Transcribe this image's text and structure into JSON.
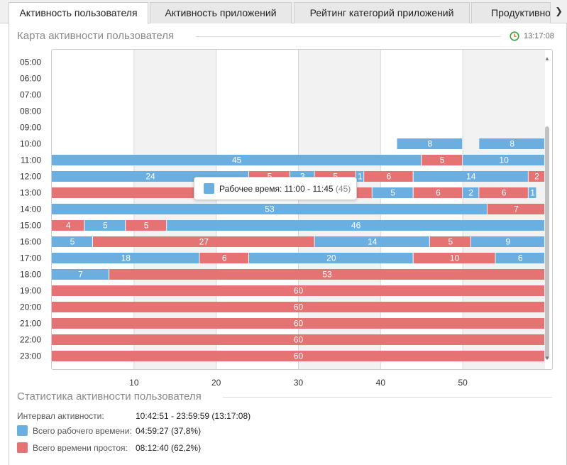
{
  "tabs": [
    {
      "label": "Активность пользователя",
      "active": true
    },
    {
      "label": "Активность приложений",
      "active": false
    },
    {
      "label": "Рейтинг категорий приложений",
      "active": false
    },
    {
      "label": "Продуктивнос",
      "active": false
    }
  ],
  "map_section": {
    "title": "Карта активности пользователя",
    "clock_icon": "clock-icon",
    "clock_time": "13:17:08"
  },
  "colors": {
    "work": "#6aafe0",
    "idle": "#e57373"
  },
  "chart_data": {
    "type": "bar",
    "orientation": "horizontal-stacked-timeline",
    "x_unit": "minutes",
    "xlim": [
      0,
      60
    ],
    "x_ticks": [
      10,
      20,
      30,
      40,
      50
    ],
    "hours": [
      "05:00",
      "06:00",
      "07:00",
      "08:00",
      "09:00",
      "10:00",
      "11:00",
      "12:00",
      "13:00",
      "14:00",
      "15:00",
      "16:00",
      "17:00",
      "18:00",
      "19:00",
      "20:00",
      "21:00",
      "22:00",
      "23:00"
    ],
    "rows": [
      {
        "hour": "05:00",
        "segments": []
      },
      {
        "hour": "06:00",
        "segments": []
      },
      {
        "hour": "07:00",
        "segments": []
      },
      {
        "hour": "08:00",
        "segments": []
      },
      {
        "hour": "09:00",
        "segments": []
      },
      {
        "hour": "10:00",
        "segments": [
          {
            "s": 42,
            "d": 8,
            "t": "work"
          },
          {
            "s": 52,
            "d": 8,
            "t": "work"
          }
        ]
      },
      {
        "hour": "11:00",
        "segments": [
          {
            "s": 0,
            "d": 45,
            "t": "work"
          },
          {
            "s": 45,
            "d": 5,
            "t": "idle"
          },
          {
            "s": 50,
            "d": 10,
            "t": "work"
          }
        ]
      },
      {
        "hour": "12:00",
        "segments": [
          {
            "s": 0,
            "d": 24,
            "t": "work"
          },
          {
            "s": 24,
            "d": 5,
            "t": "idle"
          },
          {
            "s": 29,
            "d": 3,
            "t": "work"
          },
          {
            "s": 32,
            "d": 5,
            "t": "idle"
          },
          {
            "s": 37,
            "d": 1,
            "t": "work"
          },
          {
            "s": 38,
            "d": 6,
            "t": "idle"
          },
          {
            "s": 44,
            "d": 14,
            "t": "work"
          },
          {
            "s": 58,
            "d": 2,
            "t": "idle"
          }
        ]
      },
      {
        "hour": "13:00",
        "segments": [
          {
            "s": 0,
            "d": 37,
            "t": "idle"
          },
          {
            "s": 37,
            "d": 2,
            "t": "idle",
            "label": ""
          },
          {
            "s": 39,
            "d": 5,
            "t": "work"
          },
          {
            "s": 44,
            "d": 6,
            "t": "idle"
          },
          {
            "s": 50,
            "d": 2,
            "t": "work"
          },
          {
            "s": 52,
            "d": 6,
            "t": "idle"
          },
          {
            "s": 58,
            "d": 1,
            "t": "work"
          }
        ]
      },
      {
        "hour": "14:00",
        "segments": [
          {
            "s": 0,
            "d": 53,
            "t": "work"
          },
          {
            "s": 53,
            "d": 7,
            "t": "idle"
          }
        ]
      },
      {
        "hour": "15:00",
        "segments": [
          {
            "s": 0,
            "d": 4,
            "t": "idle"
          },
          {
            "s": 4,
            "d": 5,
            "t": "work"
          },
          {
            "s": 9,
            "d": 5,
            "t": "idle"
          },
          {
            "s": 14,
            "d": 46,
            "t": "work"
          }
        ]
      },
      {
        "hour": "16:00",
        "segments": [
          {
            "s": 0,
            "d": 5,
            "t": "work"
          },
          {
            "s": 5,
            "d": 27,
            "t": "idle"
          },
          {
            "s": 32,
            "d": 14,
            "t": "work"
          },
          {
            "s": 46,
            "d": 5,
            "t": "idle"
          },
          {
            "s": 51,
            "d": 9,
            "t": "work"
          }
        ]
      },
      {
        "hour": "17:00",
        "segments": [
          {
            "s": 0,
            "d": 18,
            "t": "work"
          },
          {
            "s": 18,
            "d": 6,
            "t": "idle"
          },
          {
            "s": 24,
            "d": 20,
            "t": "work"
          },
          {
            "s": 44,
            "d": 10,
            "t": "idle"
          },
          {
            "s": 54,
            "d": 6,
            "t": "work"
          }
        ]
      },
      {
        "hour": "18:00",
        "segments": [
          {
            "s": 0,
            "d": 7,
            "t": "work"
          },
          {
            "s": 7,
            "d": 53,
            "t": "idle"
          }
        ]
      },
      {
        "hour": "19:00",
        "segments": [
          {
            "s": 0,
            "d": 60,
            "t": "idle"
          }
        ]
      },
      {
        "hour": "20:00",
        "segments": [
          {
            "s": 0,
            "d": 60,
            "t": "idle"
          }
        ]
      },
      {
        "hour": "21:00",
        "segments": [
          {
            "s": 0,
            "d": 60,
            "t": "idle"
          }
        ]
      },
      {
        "hour": "22:00",
        "segments": [
          {
            "s": 0,
            "d": 60,
            "t": "idle"
          }
        ]
      },
      {
        "hour": "23:00",
        "segments": [
          {
            "s": 0,
            "d": 60,
            "t": "idle"
          }
        ]
      }
    ],
    "grid": true,
    "alternating_column_shading": true
  },
  "tooltip": {
    "label": "Рабочее время: 11:00 - 11:45",
    "count": "(45)"
  },
  "stats_section": {
    "title": "Статистика активности пользователя",
    "interval_label": "Интервал активности:",
    "interval_value": "10:42:51 - 23:59:59 (13:17:08)",
    "work_label": "Всего рабочего времени:",
    "work_value": "04:59:27 (37,8%)",
    "idle_label": "Всего времени простоя:",
    "idle_value": "08:12:40 (62,2%)"
  },
  "nav_icon": "chevron-right-icon"
}
